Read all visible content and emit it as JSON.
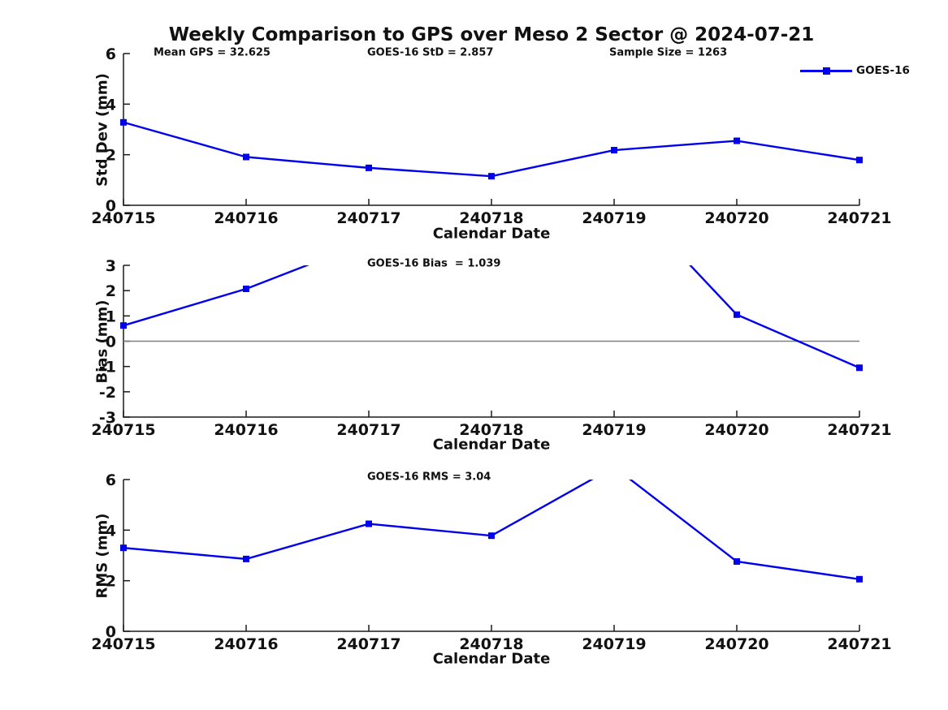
{
  "title": "Weekly Comparison to GPS over Meso 2 Sector @ 2024-07-21",
  "colors": {
    "line": "#0000EE",
    "zero_line": "#808080",
    "axis": "#1a1a1a",
    "text": "#111111"
  },
  "legend": {
    "label": "GOES-16",
    "position": "northeast-outside"
  },
  "chart_data": [
    {
      "type": "line",
      "name": "std-dev-subplot",
      "ylabel": "Std Dev (mm)",
      "xlabel": "Calendar Date",
      "x": [
        240715,
        240716,
        240717,
        240718,
        240719,
        240720,
        240721
      ],
      "series": [
        {
          "name": "GOES-16",
          "values": [
            3.28,
            1.91,
            1.48,
            1.15,
            2.18,
            2.55,
            1.79
          ]
        }
      ],
      "ylim": [
        0,
        6
      ],
      "yticks": [
        0,
        2,
        4,
        6
      ],
      "grid": false,
      "marker": "square",
      "annotations": [
        {
          "text": "Mean GPS = 32.625",
          "slot": "left"
        },
        {
          "text": "GOES-16 StD = 2.857",
          "slot": "center"
        },
        {
          "text": "Sample Size = 1263",
          "slot": "right"
        }
      ]
    },
    {
      "type": "line",
      "name": "bias-subplot",
      "ylabel": "Bias (mm)",
      "xlabel": "Calendar Date",
      "x": [
        240715,
        240716,
        240717,
        240718,
        240719,
        240720,
        240721
      ],
      "series": [
        {
          "name": "GOES-16",
          "values": [
            0.62,
            2.07,
            3.95,
            null,
            6.2,
            1.05,
            -1.05
          ],
          "clipped_above_ymax": true,
          "note": "values at 240717/240719 estimated from visible clipped line slopes; 240718 off-scale (not visible)"
        }
      ],
      "ylim": [
        -3,
        3
      ],
      "yticks": [
        -3,
        -2,
        -1,
        0,
        1,
        2,
        3
      ],
      "grid": false,
      "zero_line": true,
      "marker": "square",
      "annotations": [
        {
          "text": "GOES-16 Bias  = 1.039",
          "slot": "center"
        }
      ]
    },
    {
      "type": "line",
      "name": "rms-subplot",
      "ylabel": "RMS (mm)",
      "xlabel": "Calendar Date",
      "x": [
        240715,
        240716,
        240717,
        240718,
        240719,
        240720,
        240721
      ],
      "series": [
        {
          "name": "GOES-16",
          "values": [
            3.3,
            2.86,
            4.25,
            3.78,
            6.5,
            2.76,
            2.06
          ],
          "clipped_above_ymax": true,
          "note": "value at 240719 estimated from visible clipped line slopes"
        }
      ],
      "ylim": [
        0,
        6
      ],
      "yticks": [
        0,
        2,
        4,
        6
      ],
      "grid": false,
      "marker": "square",
      "annotations": [
        {
          "text": "GOES-16 RMS = 3.04",
          "slot": "center"
        }
      ]
    }
  ]
}
